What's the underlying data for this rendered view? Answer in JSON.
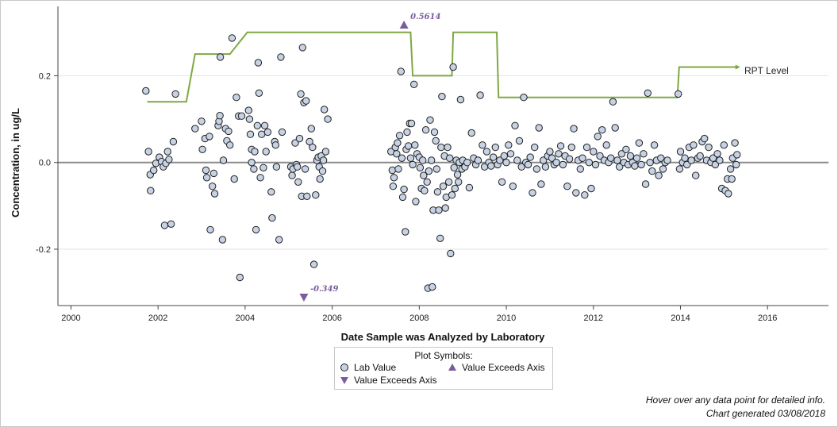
{
  "chart_data": {
    "type": "scatter",
    "ylabel": "Concentration, in ug/L",
    "xlabel": "Date Sample was Analyzed by Laboratory",
    "xlim": [
      1999.7,
      2017.4
    ],
    "ylim": [
      -0.33,
      0.36
    ],
    "x_ticks": [
      2000,
      2002,
      2004,
      2006,
      2008,
      2010,
      2012,
      2014,
      2016
    ],
    "x_tick_labels": [
      "2000",
      "2002",
      "2004",
      "2006",
      "2008",
      "2010",
      "2012",
      "2014",
      "2016"
    ],
    "y_ticks": [
      -0.2,
      0.0,
      0.2
    ],
    "y_tick_labels": [
      "-0.2",
      "0.0",
      "0.2"
    ],
    "grid": "horizontal",
    "zero_line": 0.0,
    "colors": {
      "points": "#c7d3e5",
      "point_stroke": "#1e1e1e",
      "rpt": "#7fa843",
      "exceeds": "#7a5c9e",
      "grid": "#e2e2e2",
      "zero": "#8a8a8a"
    },
    "rpt_level": {
      "name": "RPT Level",
      "steps": [
        {
          "x": 2001.75,
          "y": 0.14
        },
        {
          "x": 2002.65,
          "y": 0.14
        },
        {
          "x": 2002.85,
          "y": 0.25
        },
        {
          "x": 2003.65,
          "y": 0.25
        },
        {
          "x": 2004.05,
          "y": 0.3
        },
        {
          "x": 2007.8,
          "y": 0.3
        },
        {
          "x": 2007.85,
          "y": 0.2
        },
        {
          "x": 2008.75,
          "y": 0.2
        },
        {
          "x": 2008.78,
          "y": 0.3
        },
        {
          "x": 2009.78,
          "y": 0.3
        },
        {
          "x": 2009.82,
          "y": 0.15
        },
        {
          "x": 2013.93,
          "y": 0.15
        },
        {
          "x": 2013.97,
          "y": 0.22
        },
        {
          "x": 2015.3,
          "y": 0.22
        }
      ]
    },
    "exceeds_axis": [
      {
        "x": 2007.65,
        "y": 0.5614,
        "direction": "up",
        "label": "0.5614"
      },
      {
        "x": 2005.35,
        "y": -0.349,
        "direction": "down",
        "label": "-0.349"
      }
    ],
    "lab_values": [
      {
        "x": 2001.72,
        "y": 0.165
      },
      {
        "x": 2001.78,
        "y": 0.025
      },
      {
        "x": 2001.82,
        "y": -0.028
      },
      {
        "x": 2001.83,
        "y": -0.065
      },
      {
        "x": 2001.9,
        "y": -0.018
      },
      {
        "x": 2001.95,
        "y": -0.002
      },
      {
        "x": 2002.03,
        "y": 0.012
      },
      {
        "x": 2002.08,
        "y": 0.002
      },
      {
        "x": 2002.12,
        "y": -0.01
      },
      {
        "x": 2002.15,
        "y": -0.145
      },
      {
        "x": 2002.18,
        "y": -0.002
      },
      {
        "x": 2002.22,
        "y": 0.025
      },
      {
        "x": 2002.25,
        "y": 0.007
      },
      {
        "x": 2002.3,
        "y": -0.142
      },
      {
        "x": 2002.35,
        "y": 0.048
      },
      {
        "x": 2002.4,
        "y": 0.158
      },
      {
        "x": 2002.85,
        "y": 0.078
      },
      {
        "x": 2003.0,
        "y": 0.095
      },
      {
        "x": 2003.02,
        "y": 0.03
      },
      {
        "x": 2003.08,
        "y": 0.055
      },
      {
        "x": 2003.1,
        "y": -0.018
      },
      {
        "x": 2003.12,
        "y": -0.035
      },
      {
        "x": 2003.18,
        "y": 0.06
      },
      {
        "x": 2003.2,
        "y": -0.155
      },
      {
        "x": 2003.25,
        "y": -0.055
      },
      {
        "x": 2003.28,
        "y": -0.025
      },
      {
        "x": 2003.3,
        "y": -0.072
      },
      {
        "x": 2003.38,
        "y": 0.085
      },
      {
        "x": 2003.4,
        "y": 0.095
      },
      {
        "x": 2003.42,
        "y": 0.108
      },
      {
        "x": 2003.43,
        "y": 0.243
      },
      {
        "x": 2003.48,
        "y": -0.178
      },
      {
        "x": 2003.5,
        "y": 0.005
      },
      {
        "x": 2003.55,
        "y": 0.078
      },
      {
        "x": 2003.58,
        "y": 0.05
      },
      {
        "x": 2003.62,
        "y": 0.072
      },
      {
        "x": 2003.65,
        "y": 0.04
      },
      {
        "x": 2003.7,
        "y": 0.287
      },
      {
        "x": 2003.75,
        "y": -0.038
      },
      {
        "x": 2003.8,
        "y": 0.15
      },
      {
        "x": 2003.85,
        "y": 0.107
      },
      {
        "x": 2003.88,
        "y": -0.265
      },
      {
        "x": 2003.92,
        "y": 0.107
      },
      {
        "x": 2004.08,
        "y": 0.12
      },
      {
        "x": 2004.1,
        "y": 0.1
      },
      {
        "x": 2004.12,
        "y": 0.065
      },
      {
        "x": 2004.15,
        "y": 0.03
      },
      {
        "x": 2004.15,
        "y": 0.0
      },
      {
        "x": 2004.2,
        "y": -0.015
      },
      {
        "x": 2004.22,
        "y": 0.025
      },
      {
        "x": 2004.25,
        "y": -0.155
      },
      {
        "x": 2004.28,
        "y": 0.085
      },
      {
        "x": 2004.3,
        "y": 0.23
      },
      {
        "x": 2004.32,
        "y": 0.16
      },
      {
        "x": 2004.35,
        "y": -0.035
      },
      {
        "x": 2004.38,
        "y": 0.065
      },
      {
        "x": 2004.42,
        "y": -0.012
      },
      {
        "x": 2004.45,
        "y": 0.085
      },
      {
        "x": 2004.48,
        "y": 0.025
      },
      {
        "x": 2004.52,
        "y": 0.07
      },
      {
        "x": 2004.6,
        "y": -0.068
      },
      {
        "x": 2004.62,
        "y": -0.128
      },
      {
        "x": 2004.68,
        "y": 0.048
      },
      {
        "x": 2004.7,
        "y": 0.04
      },
      {
        "x": 2004.72,
        "y": -0.01
      },
      {
        "x": 2004.78,
        "y": -0.178
      },
      {
        "x": 2004.82,
        "y": 0.243
      },
      {
        "x": 2004.85,
        "y": 0.07
      },
      {
        "x": 2005.05,
        "y": -0.01
      },
      {
        "x": 2005.08,
        "y": -0.03
      },
      {
        "x": 2005.1,
        "y": -0.015
      },
      {
        "x": 2005.15,
        "y": 0.045
      },
      {
        "x": 2005.18,
        "y": -0.005
      },
      {
        "x": 2005.2,
        "y": -0.01
      },
      {
        "x": 2005.22,
        "y": -0.045
      },
      {
        "x": 2005.25,
        "y": 0.055
      },
      {
        "x": 2005.28,
        "y": 0.158
      },
      {
        "x": 2005.3,
        "y": -0.078
      },
      {
        "x": 2005.32,
        "y": 0.265
      },
      {
        "x": 2005.35,
        "y": 0.138
      },
      {
        "x": 2005.38,
        "y": -0.015
      },
      {
        "x": 2005.4,
        "y": 0.142
      },
      {
        "x": 2005.42,
        "y": -0.078
      },
      {
        "x": 2005.48,
        "y": 0.048
      },
      {
        "x": 2005.52,
        "y": 0.078
      },
      {
        "x": 2005.55,
        "y": 0.035
      },
      {
        "x": 2005.58,
        "y": -0.235
      },
      {
        "x": 2005.62,
        "y": -0.075
      },
      {
        "x": 2005.65,
        "y": 0.005
      },
      {
        "x": 2005.68,
        "y": 0.012
      },
      {
        "x": 2005.7,
        "y": -0.01
      },
      {
        "x": 2005.72,
        "y": -0.038
      },
      {
        "x": 2005.75,
        "y": 0.015
      },
      {
        "x": 2005.78,
        "y": -0.02
      },
      {
        "x": 2005.8,
        "y": 0.005
      },
      {
        "x": 2005.82,
        "y": 0.122
      },
      {
        "x": 2005.85,
        "y": 0.025
      },
      {
        "x": 2005.9,
        "y": 0.1
      },
      {
        "x": 2007.35,
        "y": 0.025
      },
      {
        "x": 2007.38,
        "y": -0.018
      },
      {
        "x": 2007.4,
        "y": -0.055
      },
      {
        "x": 2007.42,
        "y": -0.035
      },
      {
        "x": 2007.45,
        "y": 0.035
      },
      {
        "x": 2007.48,
        "y": 0.02
      },
      {
        "x": 2007.5,
        "y": 0.045
      },
      {
        "x": 2007.52,
        "y": -0.015
      },
      {
        "x": 2007.55,
        "y": 0.062
      },
      {
        "x": 2007.58,
        "y": 0.21
      },
      {
        "x": 2007.6,
        "y": 0.01
      },
      {
        "x": 2007.62,
        "y": -0.08
      },
      {
        "x": 2007.65,
        "y": -0.062
      },
      {
        "x": 2007.68,
        "y": -0.16
      },
      {
        "x": 2007.7,
        "y": 0.03
      },
      {
        "x": 2007.72,
        "y": 0.07
      },
      {
        "x": 2007.75,
        "y": 0.038
      },
      {
        "x": 2007.78,
        "y": 0.09
      },
      {
        "x": 2007.8,
        "y": 0.01
      },
      {
        "x": 2007.82,
        "y": 0.09
      },
      {
        "x": 2007.85,
        "y": -0.005
      },
      {
        "x": 2007.88,
        "y": 0.18
      },
      {
        "x": 2007.9,
        "y": 0.04
      },
      {
        "x": 2007.92,
        "y": -0.09
      },
      {
        "x": 2007.95,
        "y": 0.02
      },
      {
        "x": 2008.0,
        "y": 0.012
      },
      {
        "x": 2008.02,
        "y": -0.012
      },
      {
        "x": 2008.05,
        "y": -0.06
      },
      {
        "x": 2008.08,
        "y": 0.005
      },
      {
        "x": 2008.1,
        "y": -0.03
      },
      {
        "x": 2008.12,
        "y": -0.065
      },
      {
        "x": 2008.15,
        "y": 0.075
      },
      {
        "x": 2008.18,
        "y": -0.045
      },
      {
        "x": 2008.2,
        "y": -0.29
      },
      {
        "x": 2008.22,
        "y": -0.02
      },
      {
        "x": 2008.25,
        "y": 0.098
      },
      {
        "x": 2008.28,
        "y": 0.005
      },
      {
        "x": 2008.3,
        "y": -0.287
      },
      {
        "x": 2008.32,
        "y": -0.11
      },
      {
        "x": 2008.35,
        "y": 0.07
      },
      {
        "x": 2008.38,
        "y": 0.05
      },
      {
        "x": 2008.4,
        "y": -0.015
      },
      {
        "x": 2008.42,
        "y": -0.068
      },
      {
        "x": 2008.45,
        "y": -0.11
      },
      {
        "x": 2008.48,
        "y": -0.175
      },
      {
        "x": 2008.5,
        "y": 0.035
      },
      {
        "x": 2008.52,
        "y": 0.152
      },
      {
        "x": 2008.55,
        "y": -0.055
      },
      {
        "x": 2008.58,
        "y": 0.015
      },
      {
        "x": 2008.6,
        "y": -0.105
      },
      {
        "x": 2008.62,
        "y": -0.08
      },
      {
        "x": 2008.65,
        "y": 0.035
      },
      {
        "x": 2008.68,
        "y": -0.045
      },
      {
        "x": 2008.7,
        "y": 0.01
      },
      {
        "x": 2008.72,
        "y": -0.21
      },
      {
        "x": 2008.75,
        "y": -0.075
      },
      {
        "x": 2008.78,
        "y": 0.22
      },
      {
        "x": 2008.8,
        "y": -0.012
      },
      {
        "x": 2008.82,
        "y": -0.06
      },
      {
        "x": 2008.85,
        "y": 0.005
      },
      {
        "x": 2008.88,
        "y": -0.028
      },
      {
        "x": 2008.9,
        "y": -0.045
      },
      {
        "x": 2008.92,
        "y": 0.0
      },
      {
        "x": 2008.95,
        "y": 0.145
      },
      {
        "x": 2008.98,
        "y": -0.015
      },
      {
        "x": 2009.0,
        "y": 0.005
      },
      {
        "x": 2009.05,
        "y": -0.01
      },
      {
        "x": 2009.1,
        "y": 0.0
      },
      {
        "x": 2009.15,
        "y": -0.058
      },
      {
        "x": 2009.2,
        "y": 0.068
      },
      {
        "x": 2009.25,
        "y": 0.01
      },
      {
        "x": 2009.3,
        "y": -0.005
      },
      {
        "x": 2009.35,
        "y": 0.005
      },
      {
        "x": 2009.4,
        "y": 0.155
      },
      {
        "x": 2009.45,
        "y": 0.04
      },
      {
        "x": 2009.5,
        "y": -0.01
      },
      {
        "x": 2009.55,
        "y": 0.025
      },
      {
        "x": 2009.6,
        "y": 0.0
      },
      {
        "x": 2009.65,
        "y": -0.008
      },
      {
        "x": 2009.7,
        "y": 0.012
      },
      {
        "x": 2009.75,
        "y": 0.035
      },
      {
        "x": 2009.8,
        "y": -0.005
      },
      {
        "x": 2009.85,
        "y": 0.005
      },
      {
        "x": 2009.9,
        "y": -0.045
      },
      {
        "x": 2009.95,
        "y": 0.015
      },
      {
        "x": 2010.0,
        "y": 0.0
      },
      {
        "x": 2010.05,
        "y": 0.04
      },
      {
        "x": 2010.1,
        "y": 0.02
      },
      {
        "x": 2010.15,
        "y": -0.055
      },
      {
        "x": 2010.2,
        "y": 0.085
      },
      {
        "x": 2010.25,
        "y": 0.005
      },
      {
        "x": 2010.3,
        "y": 0.05
      },
      {
        "x": 2010.35,
        "y": -0.01
      },
      {
        "x": 2010.4,
        "y": 0.15
      },
      {
        "x": 2010.45,
        "y": 0.0
      },
      {
        "x": 2010.5,
        "y": -0.005
      },
      {
        "x": 2010.55,
        "y": 0.012
      },
      {
        "x": 2010.6,
        "y": -0.07
      },
      {
        "x": 2010.65,
        "y": 0.035
      },
      {
        "x": 2010.7,
        "y": -0.015
      },
      {
        "x": 2010.75,
        "y": 0.08
      },
      {
        "x": 2010.8,
        "y": -0.05
      },
      {
        "x": 2010.85,
        "y": 0.005
      },
      {
        "x": 2010.9,
        "y": -0.01
      },
      {
        "x": 2010.95,
        "y": 0.015
      },
      {
        "x": 2011.0,
        "y": 0.025
      },
      {
        "x": 2011.05,
        "y": 0.01
      },
      {
        "x": 2011.1,
        "y": -0.005
      },
      {
        "x": 2011.15,
        "y": 0.0
      },
      {
        "x": 2011.2,
        "y": 0.02
      },
      {
        "x": 2011.25,
        "y": 0.038
      },
      {
        "x": 2011.3,
        "y": -0.005
      },
      {
        "x": 2011.35,
        "y": 0.015
      },
      {
        "x": 2011.4,
        "y": -0.055
      },
      {
        "x": 2011.45,
        "y": 0.008
      },
      {
        "x": 2011.5,
        "y": 0.035
      },
      {
        "x": 2011.55,
        "y": 0.078
      },
      {
        "x": 2011.6,
        "y": -0.07
      },
      {
        "x": 2011.65,
        "y": 0.005
      },
      {
        "x": 2011.7,
        "y": -0.015
      },
      {
        "x": 2011.75,
        "y": 0.01
      },
      {
        "x": 2011.8,
        "y": -0.075
      },
      {
        "x": 2011.85,
        "y": 0.035
      },
      {
        "x": 2011.9,
        "y": 0.0
      },
      {
        "x": 2011.95,
        "y": -0.06
      },
      {
        "x": 2012.0,
        "y": 0.025
      },
      {
        "x": 2012.05,
        "y": -0.005
      },
      {
        "x": 2012.1,
        "y": 0.06
      },
      {
        "x": 2012.15,
        "y": 0.015
      },
      {
        "x": 2012.2,
        "y": 0.075
      },
      {
        "x": 2012.25,
        "y": 0.005
      },
      {
        "x": 2012.3,
        "y": 0.04
      },
      {
        "x": 2012.35,
        "y": 0.0
      },
      {
        "x": 2012.4,
        "y": 0.01
      },
      {
        "x": 2012.45,
        "y": 0.14
      },
      {
        "x": 2012.5,
        "y": 0.08
      },
      {
        "x": 2012.55,
        "y": 0.005
      },
      {
        "x": 2012.6,
        "y": -0.01
      },
      {
        "x": 2012.65,
        "y": 0.02
      },
      {
        "x": 2012.7,
        "y": 0.0
      },
      {
        "x": 2012.75,
        "y": 0.03
      },
      {
        "x": 2012.8,
        "y": -0.005
      },
      {
        "x": 2012.85,
        "y": 0.015
      },
      {
        "x": 2012.9,
        "y": 0.0
      },
      {
        "x": 2012.95,
        "y": -0.008
      },
      {
        "x": 2013.0,
        "y": 0.01
      },
      {
        "x": 2013.05,
        "y": 0.045
      },
      {
        "x": 2013.1,
        "y": -0.005
      },
      {
        "x": 2013.15,
        "y": 0.02
      },
      {
        "x": 2013.2,
        "y": -0.05
      },
      {
        "x": 2013.25,
        "y": 0.16
      },
      {
        "x": 2013.3,
        "y": 0.0
      },
      {
        "x": 2013.35,
        "y": -0.02
      },
      {
        "x": 2013.4,
        "y": 0.04
      },
      {
        "x": 2013.45,
        "y": 0.005
      },
      {
        "x": 2013.5,
        "y": -0.03
      },
      {
        "x": 2013.55,
        "y": 0.01
      },
      {
        "x": 2013.6,
        "y": -0.015
      },
      {
        "x": 2013.65,
        "y": 0.0
      },
      {
        "x": 2013.7,
        "y": 0.005
      },
      {
        "x": 2013.95,
        "y": 0.158
      },
      {
        "x": 2013.98,
        "y": -0.015
      },
      {
        "x": 2014.0,
        "y": 0.025
      },
      {
        "x": 2014.05,
        "y": 0.0
      },
      {
        "x": 2014.1,
        "y": 0.01
      },
      {
        "x": 2014.15,
        "y": -0.005
      },
      {
        "x": 2014.2,
        "y": 0.035
      },
      {
        "x": 2014.25,
        "y": 0.005
      },
      {
        "x": 2014.3,
        "y": 0.04
      },
      {
        "x": 2014.35,
        "y": -0.03
      },
      {
        "x": 2014.4,
        "y": 0.01
      },
      {
        "x": 2014.45,
        "y": 0.015
      },
      {
        "x": 2014.5,
        "y": 0.048
      },
      {
        "x": 2014.55,
        "y": 0.055
      },
      {
        "x": 2014.6,
        "y": 0.005
      },
      {
        "x": 2014.65,
        "y": 0.035
      },
      {
        "x": 2014.7,
        "y": 0.0
      },
      {
        "x": 2014.75,
        "y": 0.01
      },
      {
        "x": 2014.8,
        "y": -0.005
      },
      {
        "x": 2014.85,
        "y": 0.02
      },
      {
        "x": 2014.9,
        "y": 0.005
      },
      {
        "x": 2014.95,
        "y": -0.06
      },
      {
        "x": 2015.0,
        "y": 0.04
      },
      {
        "x": 2015.03,
        "y": -0.065
      },
      {
        "x": 2015.08,
        "y": -0.038
      },
      {
        "x": 2015.1,
        "y": -0.072
      },
      {
        "x": 2015.15,
        "y": -0.015
      },
      {
        "x": 2015.18,
        "y": -0.038
      },
      {
        "x": 2015.2,
        "y": 0.01
      },
      {
        "x": 2015.25,
        "y": 0.045
      },
      {
        "x": 2015.28,
        "y": -0.005
      },
      {
        "x": 2015.3,
        "y": 0.018
      }
    ],
    "rpt_label": "RPT Level"
  },
  "legend": {
    "title": "Plot Symbols:",
    "lab_value": "Lab Value",
    "exceeds_up": "Value Exceeds Axis",
    "exceeds_down": "Value Exceeds Axis"
  },
  "footnotes": {
    "hover": "Hover over any data point for detailed info.",
    "generated": "Chart generated 03/08/2018"
  }
}
